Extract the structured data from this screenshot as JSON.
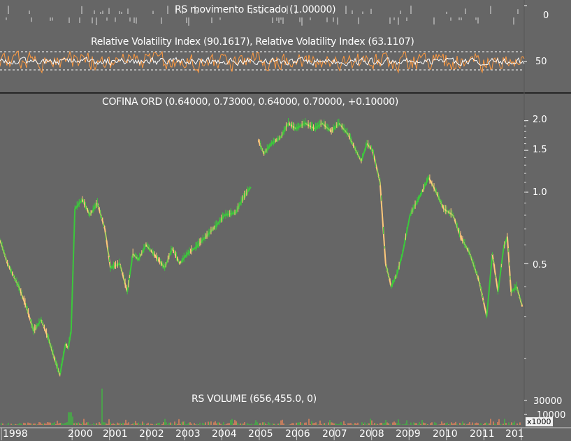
{
  "chart_data": [
    {
      "type": "bar",
      "title": "RS movimento Esticado (1.00000)",
      "y_ticks": [
        "0"
      ]
    },
    {
      "type": "line",
      "title": "Relative Volatility Index (90.1617), Relative Volatility Index (63.1107)",
      "y_ticks": [
        "50"
      ],
      "guide_lines": [
        35,
        65
      ],
      "series": [
        {
          "name": "Relative Volatility Index (90.1617)",
          "color": "#ff9a40"
        },
        {
          "name": "Relative Volatility Index (63.1107)",
          "color": "#ffffff"
        }
      ]
    },
    {
      "type": "line",
      "title": "COFINA ORD (0.64000, 0.73000, 0.64000, 0.70000, +0.10000)",
      "scale": "log",
      "y_ticks": [
        "2.0",
        "1.5",
        "1.0",
        "0.5"
      ],
      "tick_values": [
        2.0,
        1.5,
        1.0,
        0.5
      ],
      "x_ticks": [
        "1998",
        "2000",
        "2001",
        "2002",
        "2003",
        "2004",
        "2005",
        "2006",
        "2007",
        "2008",
        "2009",
        "2010",
        "2011",
        "201"
      ],
      "colors": {
        "up": "#3cc83c",
        "down": "#ffc87a"
      },
      "series": [
        {
          "name": "COFINA ORD",
          "x": [
            1998.0,
            1998.2,
            1998.5,
            1998.7,
            1998.9,
            1999.1,
            1999.3,
            1999.45,
            1999.6,
            1999.75,
            1999.82,
            1999.9,
            2000.0,
            2000.2,
            2000.4,
            2000.6,
            2000.8,
            2000.95,
            2001.2,
            2001.4,
            2001.55,
            2001.7,
            2001.9,
            2002.1,
            2002.4,
            2002.6,
            2002.8,
            2003.0,
            2003.2,
            2003.5,
            2003.8,
            2004.0,
            2004.3,
            2004.5,
            2004.7
          ],
          "values": [
            0.63,
            0.5,
            0.4,
            0.33,
            0.26,
            0.29,
            0.24,
            0.2,
            0.17,
            0.23,
            0.22,
            0.26,
            0.85,
            0.93,
            0.8,
            0.9,
            0.7,
            0.48,
            0.5,
            0.38,
            0.55,
            0.52,
            0.6,
            0.55,
            0.48,
            0.58,
            0.5,
            0.55,
            0.58,
            0.65,
            0.73,
            0.8,
            0.82,
            0.95,
            1.05
          ]
        },
        {
          "name": "COFINA ORD",
          "x": [
            2004.9,
            2005.05,
            2005.25,
            2005.5,
            2005.7,
            2005.9,
            2006.15,
            2006.4,
            2006.6,
            2006.85,
            2007.05,
            2007.3,
            2007.5,
            2007.65,
            2007.8,
            2007.95,
            2008.15,
            2008.3,
            2008.45,
            2008.6,
            2008.75,
            2008.95,
            2009.2,
            2009.45,
            2009.65,
            2009.85,
            2010.1,
            2010.3,
            2010.55,
            2010.8,
            2011.0,
            2011.15,
            2011.3,
            2011.45,
            2011.55,
            2011.65,
            2011.8,
            2011.95
          ],
          "values": [
            1.65,
            1.45,
            1.6,
            1.7,
            1.95,
            1.85,
            1.95,
            1.85,
            1.95,
            1.8,
            1.95,
            1.75,
            1.5,
            1.35,
            1.6,
            1.5,
            1.1,
            0.5,
            0.4,
            0.45,
            0.55,
            0.8,
            0.95,
            1.15,
            1.0,
            0.85,
            0.8,
            0.65,
            0.55,
            0.42,
            0.3,
            0.55,
            0.38,
            0.58,
            0.65,
            0.38,
            0.4,
            0.33
          ]
        }
      ]
    },
    {
      "type": "bar",
      "title": "RS VOLUME (656,455.0, 0)",
      "y_ticks": [
        "30000",
        "10000"
      ],
      "unit_label": "x1000",
      "colors": {
        "up": "#3cc83c",
        "down": "#ff8a5a"
      }
    }
  ]
}
